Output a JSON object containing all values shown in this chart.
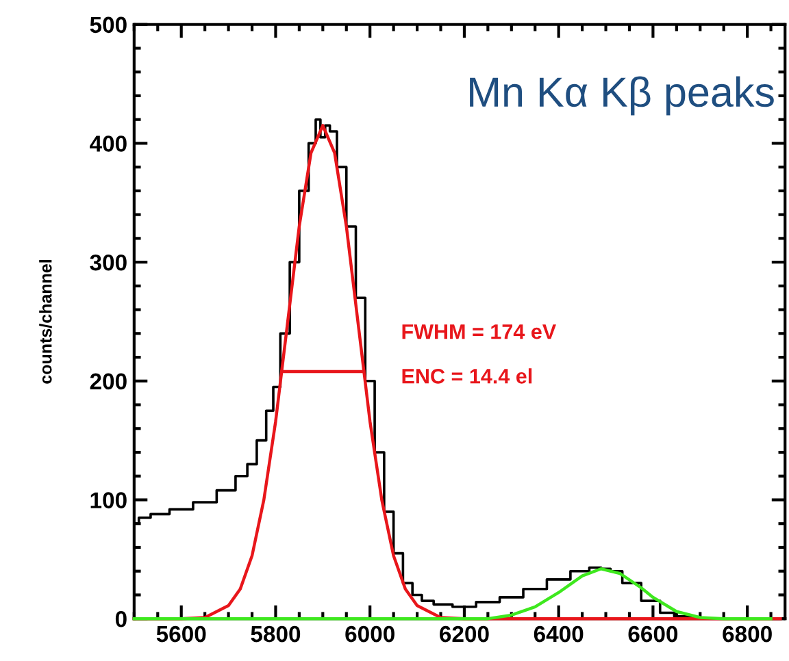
{
  "chart_data": {
    "type": "step",
    "title": "Mn Kα Kβ peaks",
    "ylabel": "counts/channel",
    "annotations": [
      "FWHM = 174 eV",
      "ENC = 14.4 el"
    ],
    "xlim": [
      5500,
      6880
    ],
    "xticks": [
      5600,
      5800,
      6000,
      6200,
      6400,
      6600,
      6800
    ],
    "ylim": [
      0,
      500
    ],
    "yticks": [
      0,
      100,
      200,
      300,
      400,
      500
    ],
    "series": [
      {
        "color": "#000000",
        "x": [
          5500,
          5520,
          5550,
          5600,
          5650,
          5700,
          5730,
          5750,
          5770,
          5790,
          5800,
          5820,
          5840,
          5860,
          5880,
          5890,
          5900,
          5910,
          5920,
          5940,
          5960,
          5980,
          6000,
          6020,
          6040,
          6060,
          6080,
          6100,
          6120,
          6150,
          6200,
          6250,
          6300,
          6350,
          6400,
          6450,
          6480,
          6500,
          6520,
          6550,
          6600,
          6630,
          6660,
          6700
        ],
        "values": [
          80,
          85,
          88,
          92,
          98,
          108,
          120,
          130,
          150,
          175,
          195,
          240,
          300,
          360,
          400,
          420,
          405,
          415,
          410,
          380,
          330,
          270,
          200,
          140,
          90,
          55,
          30,
          20,
          15,
          12,
          10,
          14,
          18,
          25,
          33,
          40,
          43,
          42,
          40,
          30,
          15,
          5,
          2,
          0
        ]
      },
      {
        "type": "line",
        "color": "#e8161b",
        "x": [
          5500,
          5600,
          5650,
          5700,
          5725,
          5750,
          5775,
          5800,
          5825,
          5850,
          5875,
          5900,
          5925,
          5950,
          5975,
          6000,
          6025,
          6050,
          6075,
          6100,
          6150,
          6200,
          6870
        ],
        "values": [
          0,
          0,
          1,
          11,
          25,
          53,
          100,
          166,
          248,
          330,
          392,
          415,
          392,
          330,
          248,
          166,
          100,
          53,
          25,
          11,
          1,
          0,
          0
        ]
      },
      {
        "type": "line",
        "color": "#e8161b",
        "x": [
          5813,
          5987
        ],
        "values": [
          208,
          208
        ]
      },
      {
        "type": "line",
        "color": "#3ee81e",
        "x": [
          5500,
          6250,
          6300,
          6350,
          6400,
          6450,
          6490,
          6530,
          6575,
          6600,
          6650,
          6700,
          6750,
          6850
        ],
        "values": [
          0,
          0,
          3,
          10,
          22,
          36,
          42,
          38,
          26,
          18,
          6,
          1,
          0,
          0
        ]
      }
    ]
  }
}
